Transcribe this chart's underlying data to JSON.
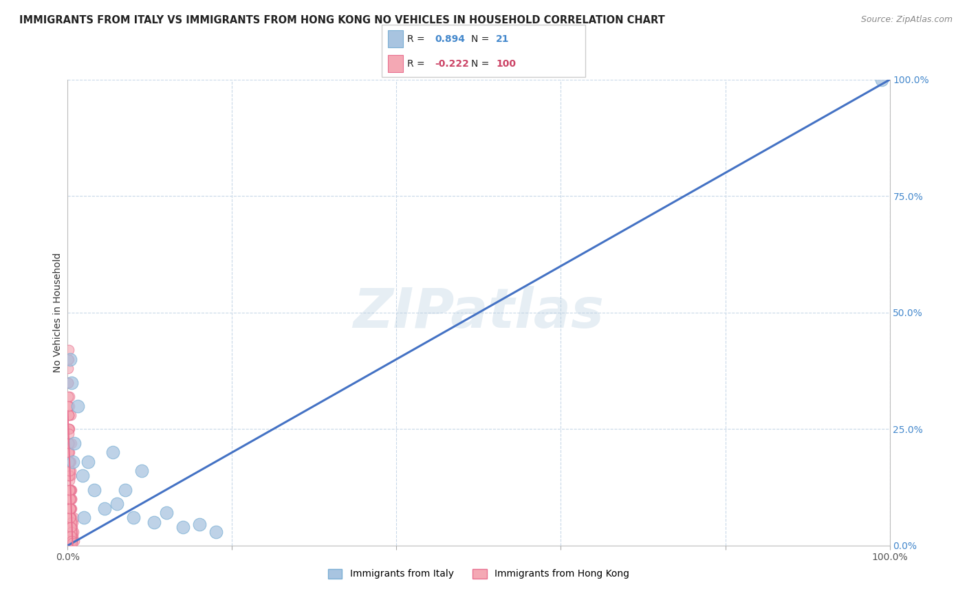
{
  "title": "IMMIGRANTS FROM ITALY VS IMMIGRANTS FROM HONG KONG NO VEHICLES IN HOUSEHOLD CORRELATION CHART",
  "source": "Source: ZipAtlas.com",
  "ylabel": "No Vehicles in Household",
  "watermark": "ZIPatlas",
  "italy_x": [
    0.5,
    1.2,
    0.8,
    2.5,
    1.8,
    3.2,
    4.5,
    6.0,
    8.0,
    10.5,
    12.0,
    14.0,
    16.0,
    0.3,
    0.6,
    5.5,
    7.0,
    18.0,
    9.0,
    99.0,
    2.0
  ],
  "italy_y": [
    35.0,
    30.0,
    22.0,
    18.0,
    15.0,
    12.0,
    8.0,
    9.0,
    6.0,
    5.0,
    7.0,
    4.0,
    4.5,
    40.0,
    18.0,
    20.0,
    12.0,
    3.0,
    16.0,
    100.0,
    6.0
  ],
  "hk_x": [
    0.05,
    0.08,
    0.1,
    0.12,
    0.15,
    0.18,
    0.2,
    0.22,
    0.25,
    0.28,
    0.3,
    0.32,
    0.35,
    0.38,
    0.4,
    0.42,
    0.45,
    0.48,
    0.5,
    0.55,
    0.6,
    0.65,
    0.7,
    0.75,
    0.8,
    0.05,
    0.1,
    0.15,
    0.2,
    0.25,
    0.3,
    0.35,
    0.4,
    0.45,
    0.5,
    0.08,
    0.12,
    0.18,
    0.22,
    0.28,
    0.32,
    0.38,
    0.42,
    0.48,
    0.52,
    0.06,
    0.11,
    0.16,
    0.21,
    0.26,
    0.31,
    0.36,
    0.41,
    0.46,
    0.51,
    0.09,
    0.14,
    0.19,
    0.24,
    0.29,
    0.34,
    0.39,
    0.44,
    0.49,
    0.54,
    0.07,
    0.13,
    0.17,
    0.23,
    0.27,
    0.33,
    0.37,
    0.43,
    0.47,
    0.53,
    0.04,
    0.09,
    0.16,
    0.21,
    0.26,
    0.31,
    0.36,
    0.41,
    0.46,
    0.51,
    0.07,
    0.12,
    0.17,
    0.22,
    0.27,
    0.32,
    0.37,
    0.42,
    0.47,
    0.52,
    0.06,
    0.11,
    0.16,
    0.21,
    0.26
  ],
  "hk_y": [
    15.0,
    22.0,
    8.0,
    18.0,
    25.0,
    12.0,
    30.0,
    20.0,
    5.0,
    18.0,
    10.0,
    22.0,
    15.0,
    28.0,
    8.0,
    16.0,
    6.0,
    12.0,
    10.0,
    4.0,
    2.0,
    5.0,
    6.0,
    3.0,
    1.0,
    35.0,
    28.0,
    40.0,
    32.0,
    14.0,
    8.0,
    18.0,
    10.0,
    22.0,
    5.0,
    20.0,
    15.0,
    25.0,
    10.0,
    6.0,
    18.0,
    12.0,
    4.0,
    8.0,
    3.0,
    38.0,
    42.0,
    20.0,
    16.0,
    10.0,
    6.0,
    12.0,
    8.0,
    4.0,
    2.0,
    30.0,
    25.0,
    18.0,
    12.0,
    8.0,
    4.0,
    6.0,
    10.0,
    3.0,
    1.0,
    35.0,
    28.0,
    22.0,
    15.0,
    10.0,
    6.0,
    3.0,
    5.0,
    2.0,
    1.0,
    40.0,
    32.0,
    25.0,
    18.0,
    12.0,
    8.0,
    4.0,
    2.0,
    3.0,
    1.0,
    35.0,
    28.0,
    22.0,
    16.0,
    10.0,
    6.0,
    4.0,
    2.0,
    1.0,
    0.5,
    30.0,
    24.0,
    18.0,
    12.0,
    8.0
  ],
  "italy_color": "#a8c4e0",
  "hk_color": "#f4a8b4",
  "italy_edge": "#7bafd4",
  "hk_edge": "#e87090",
  "italy_line_color": "#4472c4",
  "hk_line_color": "#e87090",
  "bg_color": "#ffffff",
  "grid_color": "#c8d8e8",
  "xlim": [
    0,
    100
  ],
  "ylim": [
    0,
    100
  ]
}
